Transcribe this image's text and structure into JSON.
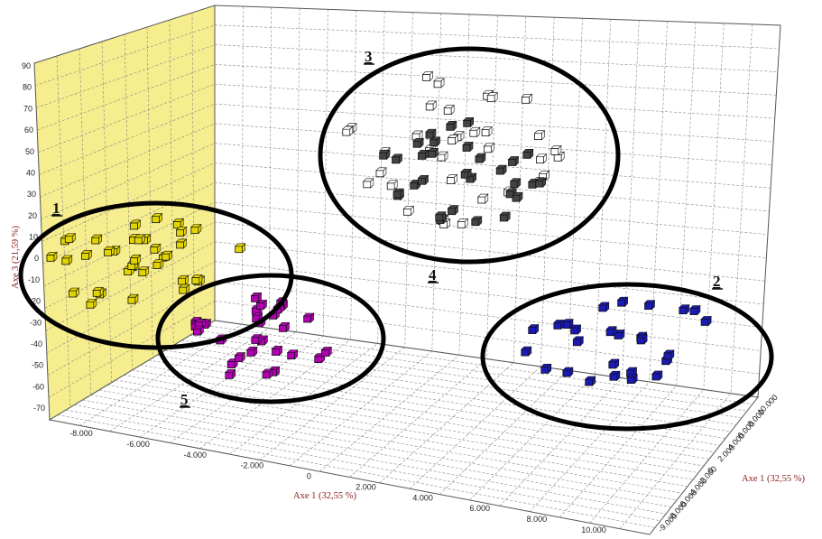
{
  "chart_data": {
    "type": "scatter",
    "x_axis_label": "Axe 1 (32,55 %)",
    "y_axis_label": "Axe 1 (32,55 %)",
    "z_axis_label": "Axe 3 (21,59 %)",
    "x_ticks": [
      "-8.000",
      "-6.000",
      "-4.000",
      "-2.000",
      "0",
      "2.000",
      "4.000",
      "6.000",
      "8.000",
      "10.000"
    ],
    "y_ticks": [
      "10.000",
      "8.000",
      "6.000",
      "4.000",
      "2.000",
      "0",
      "-2.000",
      "-4.000",
      "-6.000",
      "-8.000",
      "-9.000"
    ],
    "z_ticks": [
      "90",
      "80",
      "70",
      "60",
      "50",
      "40",
      "30",
      "20",
      "10",
      "0",
      "-10",
      "-20",
      "-30",
      "-40",
      "-50",
      "-60",
      "-70"
    ],
    "xlim": [
      -9,
      10
    ],
    "zlim": [
      -70,
      90
    ],
    "grid": true,
    "groups": [
      {
        "label": "1",
        "color": "#e2d400"
      },
      {
        "label": "2",
        "color": "#1a1ab4"
      },
      {
        "label": "3",
        "color": "#ffffff"
      },
      {
        "label": "4",
        "color": "#444444"
      },
      {
        "label": "5",
        "color": "#b400b4"
      }
    ]
  }
}
